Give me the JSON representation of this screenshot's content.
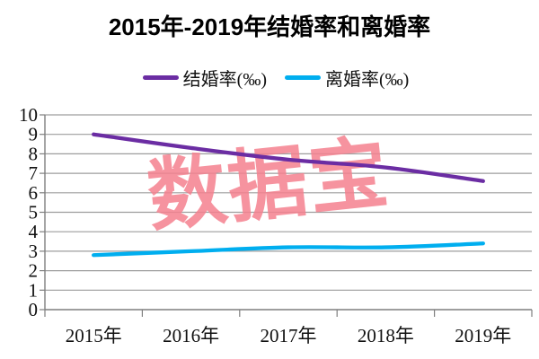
{
  "chart_data": {
    "type": "line",
    "title": "2015年-2019年结婚率和离婚率",
    "categories": [
      "2015年",
      "2016年",
      "2017年",
      "2018年",
      "2019年"
    ],
    "series": [
      {
        "name": "结婚率(‰)",
        "color": "#6B2DA3",
        "values": [
          9.0,
          8.3,
          7.7,
          7.3,
          6.6
        ]
      },
      {
        "name": "离婚率(‰)",
        "color": "#00AEEF",
        "values": [
          2.8,
          3.0,
          3.2,
          3.2,
          3.4
        ]
      }
    ],
    "ylim": [
      0,
      10
    ],
    "ytick_step": 1,
    "y_tick_labels": [
      "0",
      "1",
      "2",
      "3",
      "4",
      "5",
      "6",
      "7",
      "8",
      "9",
      "10"
    ],
    "grid": true,
    "legend_position": "top",
    "watermark": {
      "text": "数据宝",
      "color": "#F4808E"
    }
  },
  "colors": {
    "background": "#ffffff",
    "gridline": "#9D9D9D",
    "axis": "#7F7F7F",
    "tick_label": "#111111",
    "title": "#000000"
  }
}
